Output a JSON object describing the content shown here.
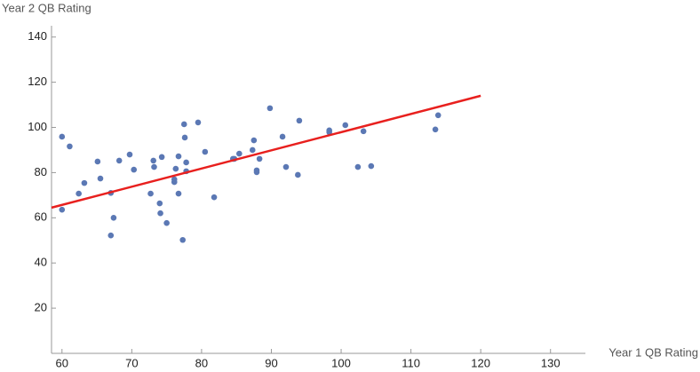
{
  "chart_data": {
    "type": "scatter",
    "x_label": "Year 1 QB Rating",
    "y_label": "Year 2 QB Rating",
    "xlim": [
      58.5,
      135
    ],
    "ylim": [
      0,
      145
    ],
    "xticks": [
      60,
      70,
      80,
      90,
      100,
      110,
      120,
      130
    ],
    "yticks": [
      20,
      40,
      60,
      80,
      100,
      120,
      140
    ],
    "grid": false,
    "series": [
      {
        "color": "#5b78b4",
        "x": [
          60.0,
          61.1,
          62.4,
          63.2,
          60.0,
          65.1,
          65.5,
          67.0,
          67.4,
          67.0,
          68.2,
          69.7,
          70.3,
          72.7,
          73.1,
          73.2,
          74.3,
          74.0,
          74.1,
          75.0,
          76.1,
          76.1,
          76.3,
          76.7,
          76.7,
          77.5,
          77.6,
          77.8,
          77.8,
          77.3,
          79.5,
          80.5,
          81.8,
          84.5,
          84.7,
          85.4,
          87.3,
          87.5,
          87.9,
          87.9,
          88.3,
          89.8,
          91.6,
          92.1,
          93.8,
          94.0,
          98.3,
          98.3,
          100.6,
          102.4,
          103.2,
          104.3,
          113.5,
          113.9
        ],
        "values": [
          95.9,
          91.6,
          70.7,
          75.4,
          63.6,
          84.9,
          77.4,
          71.0,
          60.0,
          52.2,
          85.3,
          88.0,
          81.3,
          70.7,
          85.3,
          82.5,
          86.9,
          66.4,
          62.0,
          57.7,
          75.8,
          77.0,
          81.7,
          87.2,
          70.7,
          101.4,
          95.5,
          84.5,
          80.6,
          50.2,
          102.2,
          89.2,
          69.1,
          86.1,
          86.1,
          88.4,
          90.0,
          94.3,
          81.0,
          80.2,
          86.1,
          108.5,
          95.9,
          82.5,
          79.0,
          103.0,
          98.7,
          97.9,
          101.0,
          82.5,
          98.3,
          82.9,
          99.1,
          105.4
        ]
      },
      {
        "color": "#e8201e",
        "kind": "line",
        "x": [
          58.5,
          120
        ],
        "values": [
          64.5,
          114
        ]
      }
    ]
  }
}
